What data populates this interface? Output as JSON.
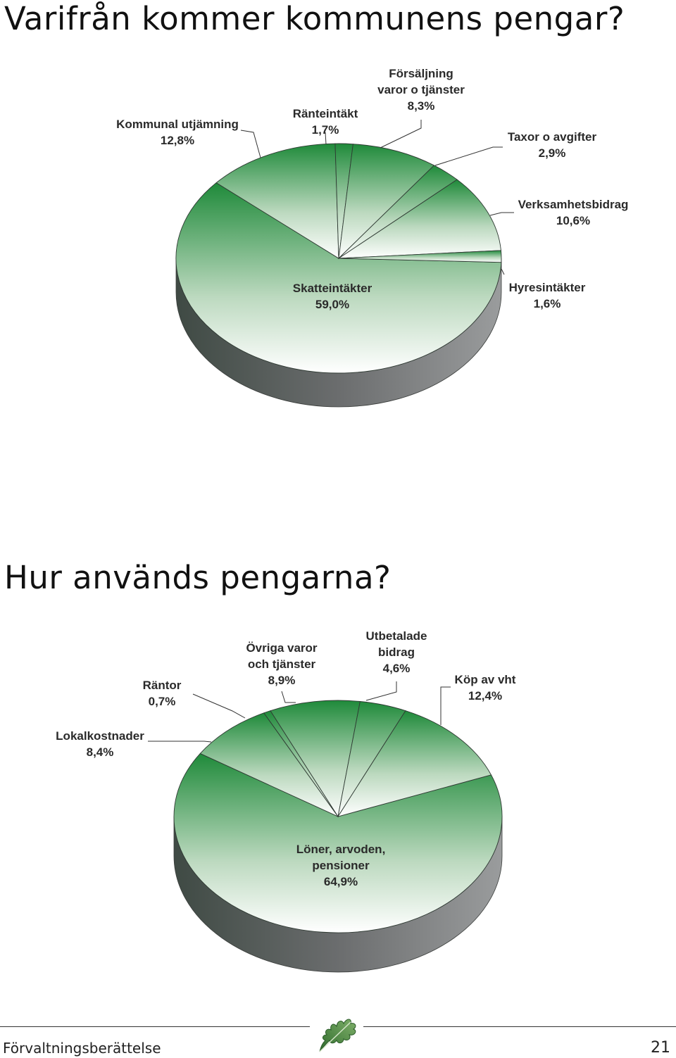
{
  "page": {
    "heading1": "Varifrån kommer kommunens pengar?",
    "heading2": "Hur används pengarna?",
    "footer_text": "Förvaltningsberättelse",
    "page_number": "21",
    "accent_green": "#1f8a3a",
    "shadow_gray": "#6b6d6e",
    "icon": "oak-leaf-icon"
  },
  "chart_data": [
    {
      "type": "pie",
      "title": "Varifrån kommer kommunens pengar?",
      "slices": [
        {
          "label": [
            "Skatteintäkter"
          ],
          "pct_text": "59,0%",
          "value": 59.0
        },
        {
          "label": [
            "Kommunal utjämning"
          ],
          "pct_text": "12,8%",
          "value": 12.8
        },
        {
          "label": [
            "Ränteintäkt"
          ],
          "pct_text": "1,7%",
          "value": 1.7
        },
        {
          "label": [
            "Försäljning",
            "varor o tjänster"
          ],
          "pct_text": "8,3%",
          "value": 8.3
        },
        {
          "label": [
            "Taxor o avgifter"
          ],
          "pct_text": "2,9%",
          "value": 2.9
        },
        {
          "label": [
            "Verksamhetsbidrag"
          ],
          "pct_text": "10,6%",
          "value": 10.6
        },
        {
          "label": [
            "Hyresintäkter"
          ],
          "pct_text": "1,6%",
          "value": 1.6
        }
      ]
    },
    {
      "type": "pie",
      "title": "Hur används pengarna?",
      "slices": [
        {
          "label": [
            "Löner, arvoden,",
            "pensioner"
          ],
          "pct_text": "64,9%",
          "value": 64.9
        },
        {
          "label": [
            "Lokalkostnader"
          ],
          "pct_text": "8,4%",
          "value": 8.4
        },
        {
          "label": [
            "Räntor"
          ],
          "pct_text": "0,7%",
          "value": 0.7
        },
        {
          "label": [
            "Övriga varor",
            "och tjänster"
          ],
          "pct_text": "8,9%",
          "value": 8.9
        },
        {
          "label": [
            "Utbetalade",
            "bidrag"
          ],
          "pct_text": "4,6%",
          "value": 4.6
        },
        {
          "label": [
            "Köp av vht"
          ],
          "pct_text": "12,4%",
          "value": 12.4
        }
      ]
    }
  ]
}
